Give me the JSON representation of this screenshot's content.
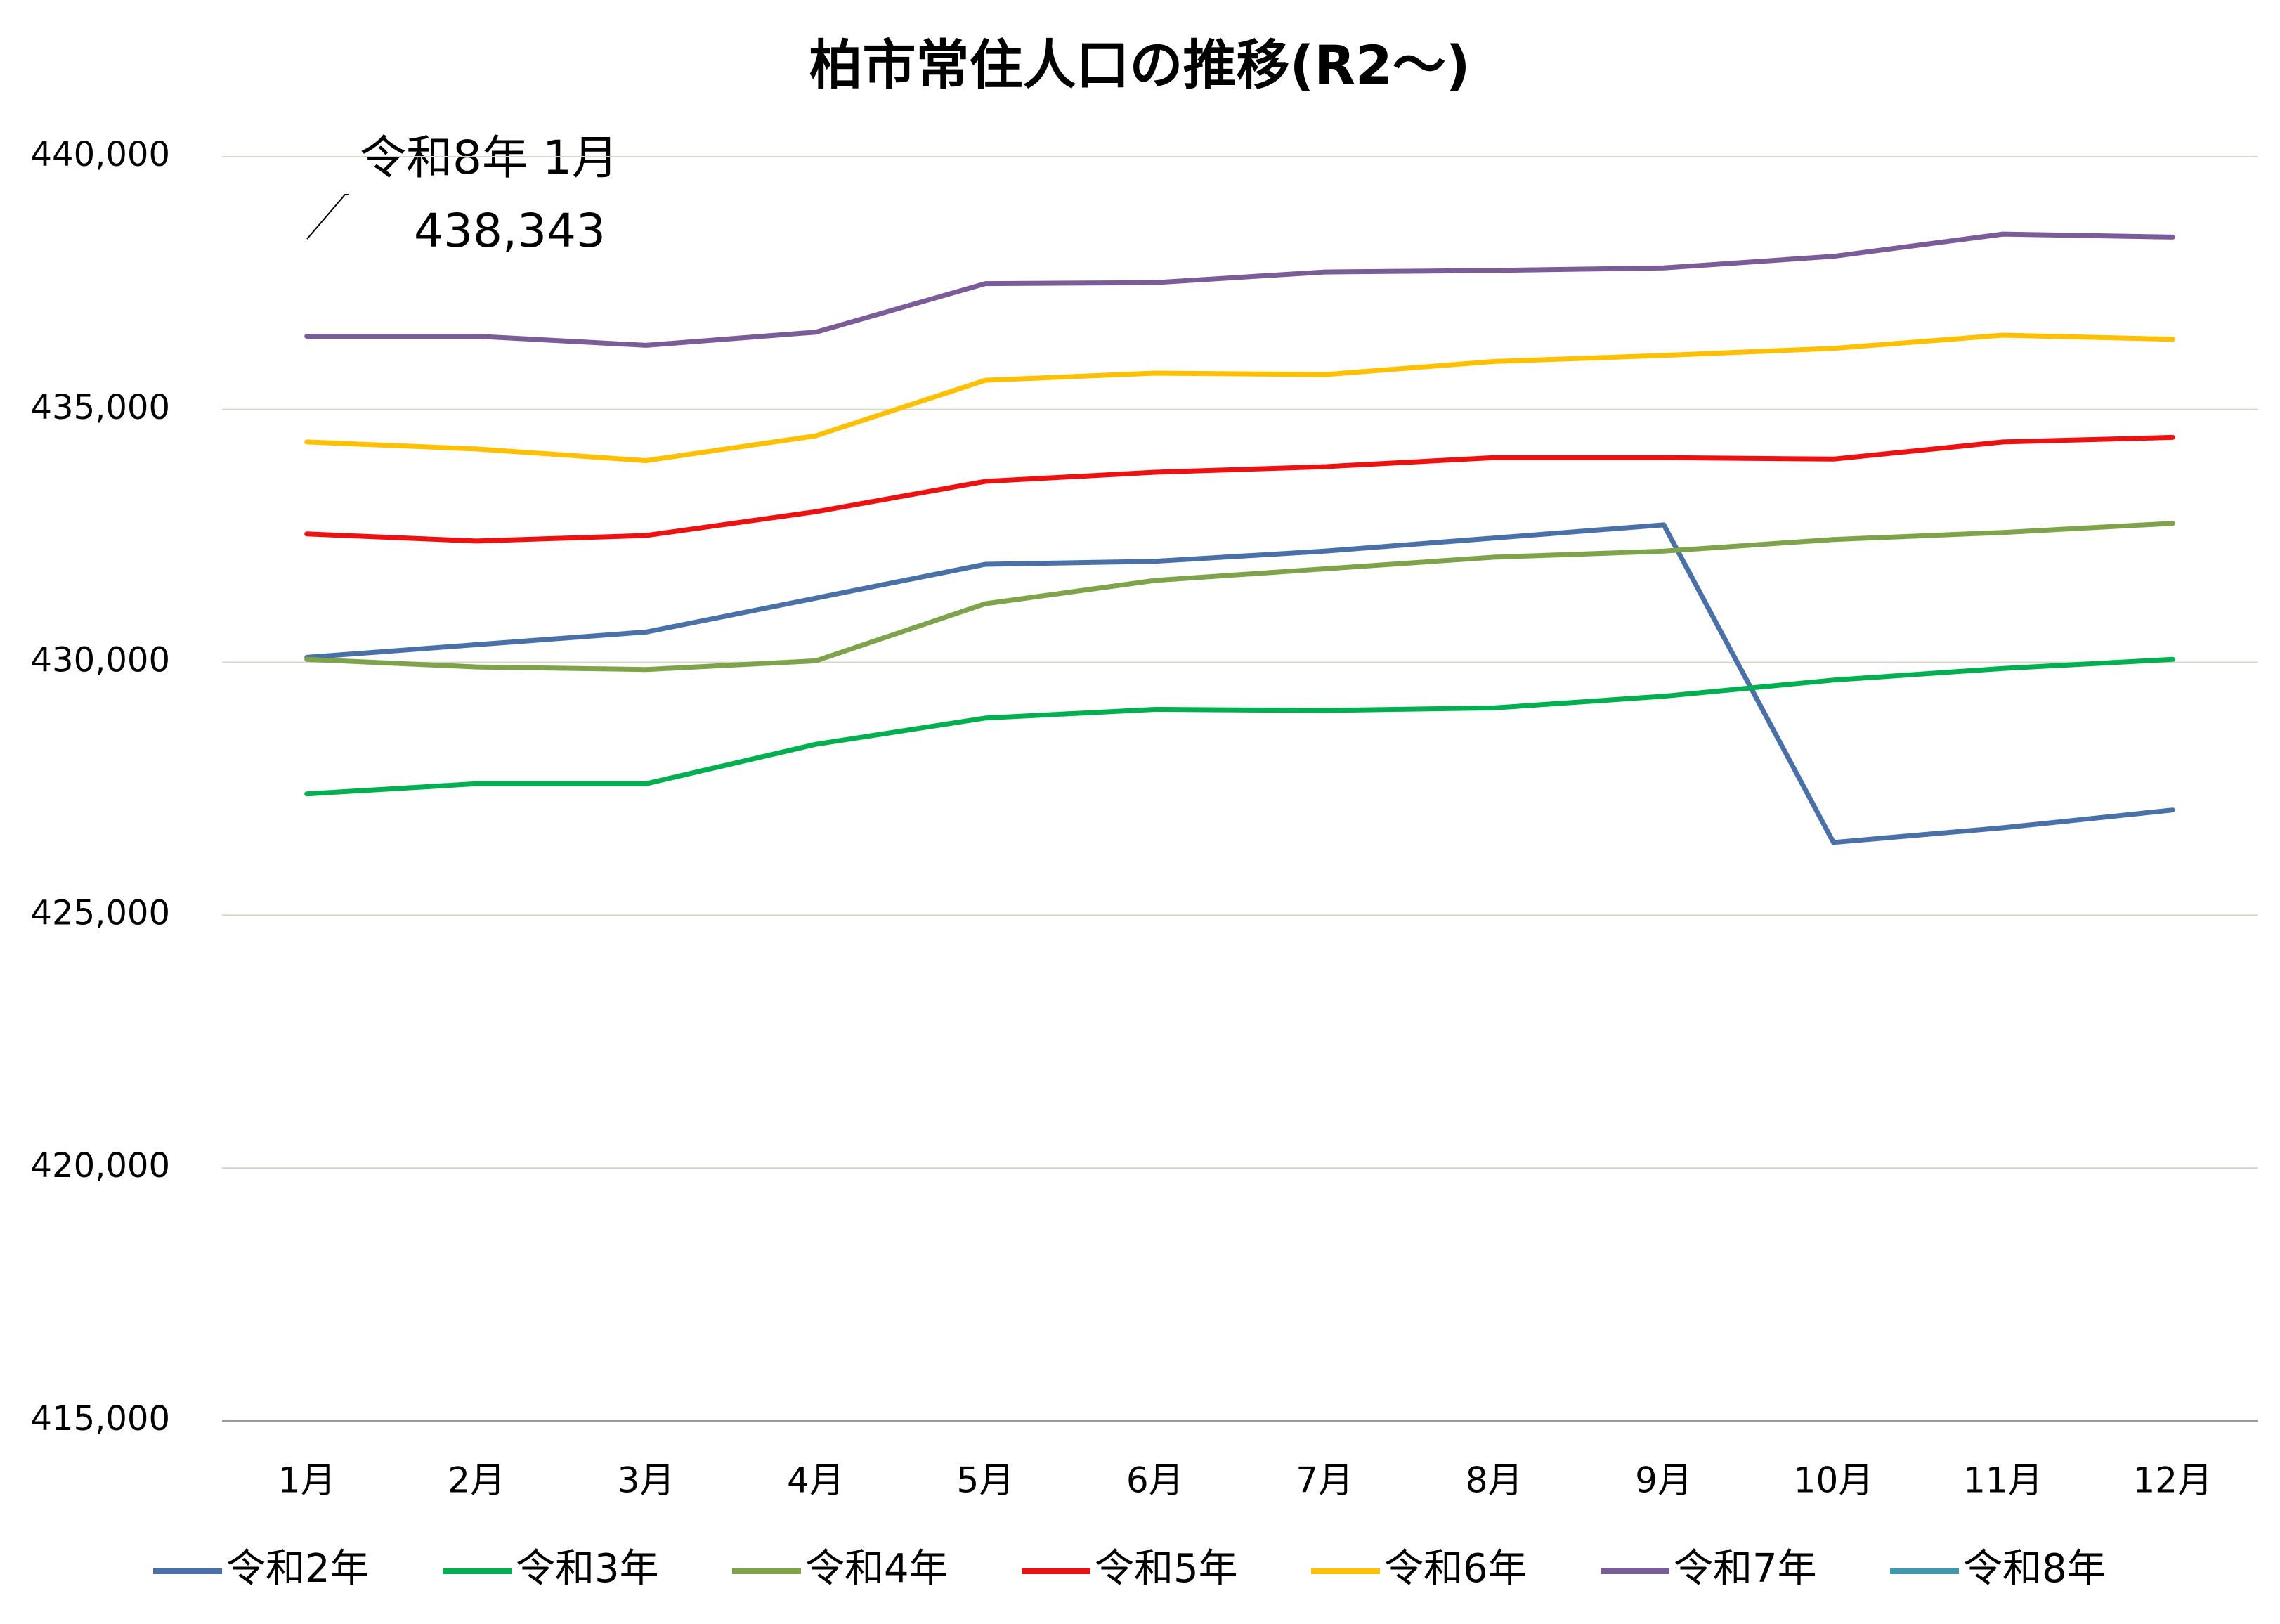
{
  "chart_data": {
    "type": "line",
    "title": "柏市常住人口の推移(R2～)",
    "categories": [
      "1月",
      "2月",
      "3月",
      "4月",
      "5月",
      "6月",
      "7月",
      "8月",
      "9月",
      "10月",
      "11月",
      "12月"
    ],
    "series": [
      {
        "name": "令和2年",
        "color": "#4a70a8",
        "values": [
          430100,
          430350,
          430600,
          431270,
          431940,
          432000,
          432200,
          432460,
          432720,
          426440,
          426730,
          427080
        ]
      },
      {
        "name": "令和3年",
        "color": "#00b050",
        "values": [
          427400,
          427600,
          427600,
          428380,
          428900,
          429070,
          429050,
          429100,
          429330,
          429650,
          429880,
          430060
        ]
      },
      {
        "name": "令和4年",
        "color": "#7ea34a",
        "values": [
          430060,
          429910,
          429860,
          430030,
          431160,
          431620,
          431850,
          432080,
          432200,
          432430,
          432570,
          432750
        ]
      },
      {
        "name": "令和5年",
        "color": "#ee1111",
        "values": [
          432540,
          432400,
          432510,
          432980,
          433580,
          433760,
          433870,
          434050,
          434050,
          434020,
          434360,
          434450
        ]
      },
      {
        "name": "令和6年",
        "color": "#ffc000",
        "values": [
          434360,
          434220,
          433990,
          434480,
          435580,
          435720,
          435690,
          435950,
          436070,
          436210,
          436470,
          436390
        ]
      },
      {
        "name": "令和7年",
        "color": "#7a5c98",
        "values": [
          436450,
          436450,
          436270,
          436530,
          437490,
          437510,
          437720,
          437750,
          437800,
          438030,
          438470,
          438410
        ]
      },
      {
        "name": "令和8年",
        "color": "#3f98b0",
        "values": [
          438343,
          null,
          null,
          null,
          null,
          null,
          null,
          null,
          null,
          null,
          null,
          null
        ],
        "value_labels": [
          "438,343",
          null,
          null,
          null,
          null,
          null,
          null,
          null,
          null,
          null,
          null,
          null
        ]
      }
    ],
    "ylim": [
      415000,
      440000
    ],
    "yticks": [
      {
        "value": 415000,
        "label": "415,000"
      },
      {
        "value": 420000,
        "label": "420,000"
      },
      {
        "value": 425000,
        "label": "425,000"
      },
      {
        "value": 430000,
        "label": "430,000"
      },
      {
        "value": 435000,
        "label": "435,000"
      },
      {
        "value": 440000,
        "label": "440,000"
      }
    ],
    "grid": true,
    "legend": "bottom"
  }
}
